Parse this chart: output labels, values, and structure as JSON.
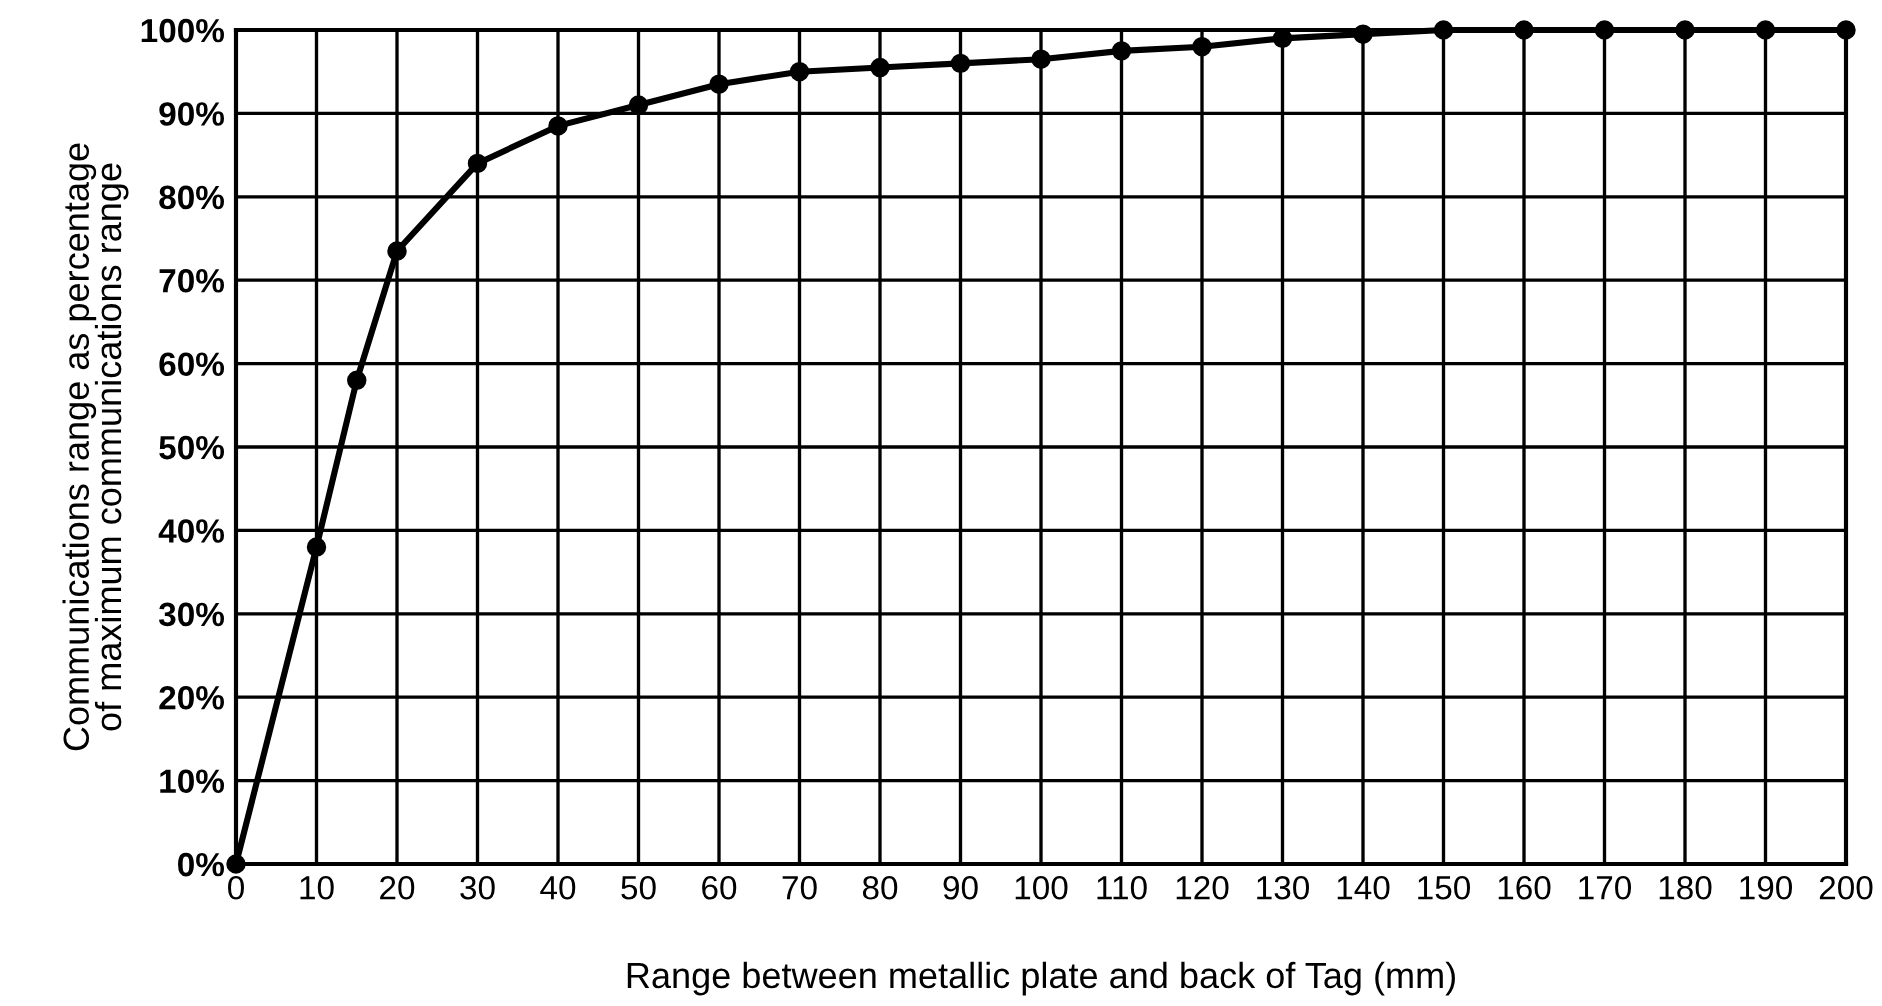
{
  "chart_data": {
    "type": "line",
    "xlabel": "Range between metallic plate and back of Tag (mm)",
    "ylabel": "Communications range as percentage\nof maximum communications range",
    "x": [
      0,
      10,
      15,
      20,
      30,
      40,
      50,
      60,
      70,
      80,
      90,
      100,
      110,
      120,
      130,
      140,
      150,
      160,
      170,
      180,
      190,
      200
    ],
    "series": [
      {
        "color": "#000000",
        "values": [
          0,
          38,
          58,
          73.5,
          84,
          88.5,
          91,
          93.5,
          95,
          95.5,
          96,
          96.5,
          97.5,
          98,
          99,
          99.5,
          100,
          100,
          100,
          100,
          100,
          100
        ]
      }
    ],
    "xlim": [
      0,
      200
    ],
    "xticks": [
      0,
      10,
      20,
      30,
      40,
      50,
      60,
      70,
      80,
      90,
      100,
      110,
      120,
      130,
      140,
      150,
      160,
      170,
      180,
      190,
      200
    ],
    "ylim": [
      0,
      100
    ],
    "yticks": [
      {
        "value": 0,
        "label": "0%"
      },
      {
        "value": 10,
        "label": "10%"
      },
      {
        "value": 20,
        "label": "20%"
      },
      {
        "value": 30,
        "label": "30%"
      },
      {
        "value": 40,
        "label": "40%"
      },
      {
        "value": 50,
        "label": "50%"
      },
      {
        "value": 60,
        "label": "60%"
      },
      {
        "value": 70,
        "label": "70%"
      },
      {
        "value": 80,
        "label": "80%"
      },
      {
        "value": 90,
        "label": "90%"
      },
      {
        "value": 100,
        "label": "100%"
      }
    ],
    "grid": true,
    "marker": "circle",
    "line_style": "solid"
  }
}
